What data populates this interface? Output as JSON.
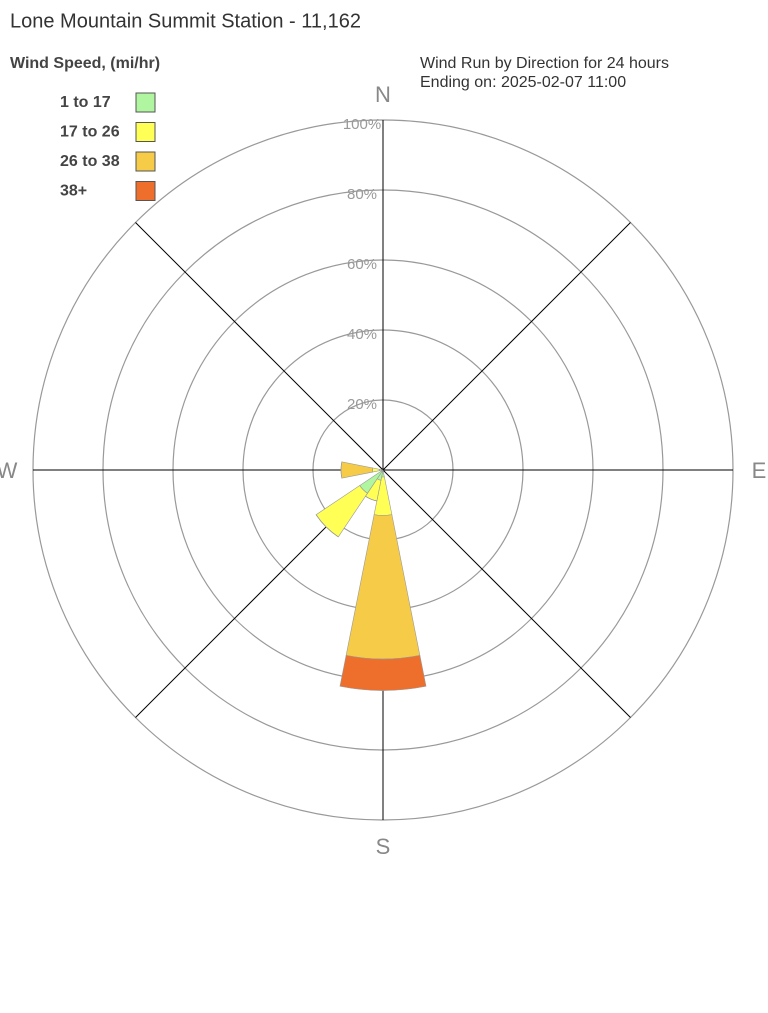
{
  "chart_data": {
    "type": "windrose",
    "title": "Lone Mountain Summit Station - 11,162",
    "legend_title": "Wind Speed, (mi/hr)",
    "subtitle": [
      "Wind Run by Direction for 24 hours",
      "Ending on: 2025-02-07 11:00"
    ],
    "categories": [
      "N",
      null,
      null,
      null,
      "E",
      null,
      null,
      null,
      "S",
      null,
      null,
      null,
      "W",
      null,
      null,
      null
    ],
    "rlim": [
      0,
      100
    ],
    "rticks": [
      {
        "value": 20,
        "label": "20%"
      },
      {
        "value": 40,
        "label": "40%"
      },
      {
        "value": 60,
        "label": "60%"
      },
      {
        "value": 80,
        "label": "80%"
      },
      {
        "value": 100,
        "label": "100%"
      }
    ],
    "legend_position": "upper left",
    "series": [
      {
        "name": "1 to 17",
        "color": "#b0f5a0",
        "values": [
          0,
          0,
          0,
          0,
          0,
          0,
          0,
          0,
          2,
          3,
          8,
          0,
          1,
          0,
          0,
          0
        ]
      },
      {
        "name": "17 to 26",
        "color": "#ffff55",
        "values": [
          0,
          0,
          0,
          0,
          0,
          0,
          0,
          0,
          11,
          6,
          15,
          0,
          2,
          0,
          0,
          0
        ]
      },
      {
        "name": "26 to 38",
        "color": "#f5cb48",
        "values": [
          0,
          0,
          0,
          0,
          0,
          0,
          0,
          0,
          41,
          0,
          0,
          0,
          9,
          0,
          0,
          0
        ]
      },
      {
        "name": "38+",
        "color": "#ee6e2c",
        "values": [
          0,
          0,
          0,
          0,
          0,
          0,
          0,
          0,
          9,
          0,
          0,
          0,
          0,
          0,
          0,
          0
        ]
      }
    ]
  }
}
